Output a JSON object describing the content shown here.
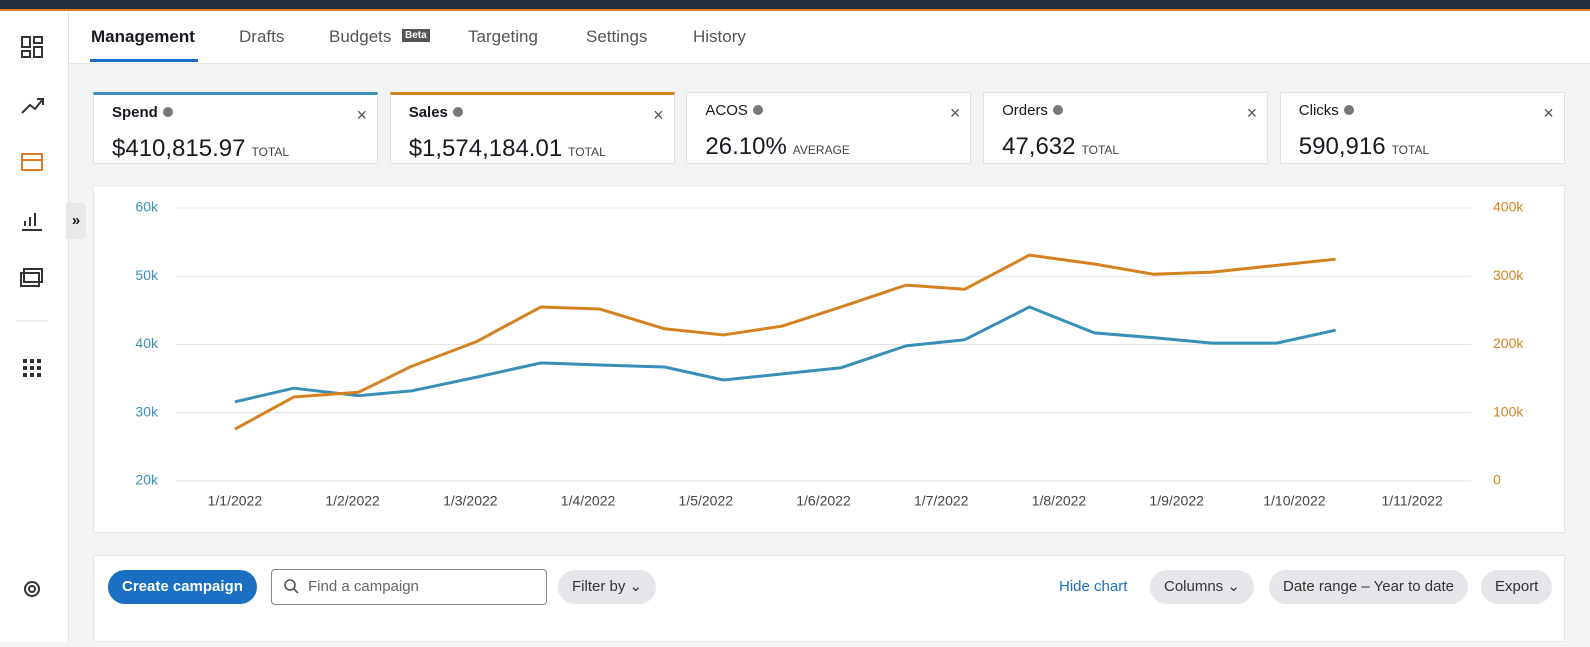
{
  "tabs": [
    "Management",
    "Drafts",
    "Budgets",
    "Targeting",
    "Settings",
    "History"
  ],
  "beta_badge": "Beta",
  "expand": "»",
  "metrics": [
    {
      "value": "$410,815.97",
      "qualifier": "TOTAL"
    },
    {
      "value": "$1,574,184.01",
      "qualifier": "TOTAL"
    },
    {
      "label": "ACOS",
      "value": "26.10%",
      "qualifier": "AVERAGE"
    },
    {
      "label": "Orders",
      "value": "47,632",
      "qualifier": "TOTAL"
    },
    {
      "label": "Clicks",
      "value": "590,916",
      "qualifier": "TOTAL"
    }
  ],
  "chart_data": {
    "type": "line",
    "x": [
      1,
      1.5,
      2.05,
      2.5,
      3.05,
      3.6,
      4.1,
      4.65,
      5.15,
      5.65,
      6.15,
      6.7,
      7.2,
      7.75,
      8.3,
      8.8,
      9.3,
      9.85,
      10.35
    ],
    "xlim": [
      0.5,
      11.5
    ],
    "xticks": [
      {
        "value": 1,
        "label": "1/1/2022"
      },
      {
        "value": 2,
        "label": "1/2/2022"
      },
      {
        "value": 3,
        "label": "1/3/2022"
      },
      {
        "value": 4,
        "label": "1/4/2022"
      },
      {
        "value": 5,
        "label": "1/5/2022"
      },
      {
        "value": 6,
        "label": "1/6/2022"
      },
      {
        "value": 7,
        "label": "1/7/2022"
      },
      {
        "value": 8,
        "label": "1/8/2022"
      },
      {
        "value": 9,
        "label": "1/9/2022"
      },
      {
        "value": 10,
        "label": "1/10/2022"
      },
      {
        "value": 11,
        "label": "1/11/2022"
      }
    ],
    "ylim": [
      20000,
      60000
    ],
    "yticks": [
      {
        "value": 20000,
        "label": "20k"
      },
      {
        "value": 30000,
        "label": "30k"
      },
      {
        "value": 40000,
        "label": "40k"
      },
      {
        "value": 50000,
        "label": "50k"
      },
      {
        "value": 60000,
        "label": "60k"
      }
    ],
    "y2lim": [
      0,
      400000
    ],
    "y2ticks": [
      0,
      {
        "value": 100000,
        "label": "100k"
      },
      {
        "value": 200000,
        "label": "200k"
      },
      {
        "value": 300000,
        "label": "300k"
      },
      {
        "value": 400000,
        "label": "400k"
      }
    ],
    "grid": true,
    "series": [
      {
        "name": "Spend",
        "color": "#3a8fb7",
        "values": [
          31600,
          33600,
          32500,
          33200,
          35200,
          37300,
          37000,
          36700,
          34800,
          35700,
          36600,
          39800,
          40700,
          45500,
          41700,
          41000,
          40200,
          40200,
          42100
        ]
      },
      {
        "name": "Sales",
        "color": "#d4821f",
        "axis": "y2",
        "values": [
          76000,
          123000,
          130000,
          168000,
          204000,
          255000,
          252000,
          223000,
          214000,
          227000,
          255000,
          287000,
          281000,
          331000,
          318000,
          303000,
          306000,
          316000,
          325000
        ]
      }
    ]
  },
  "toolbar": {
    "create": "Create campaign",
    "search": "Find a campaign",
    "filter": "Filter by",
    "hide": "Hide chart",
    "columns": "Columns",
    "date_range": "Date range – Year to date",
    "export": "Export"
  }
}
